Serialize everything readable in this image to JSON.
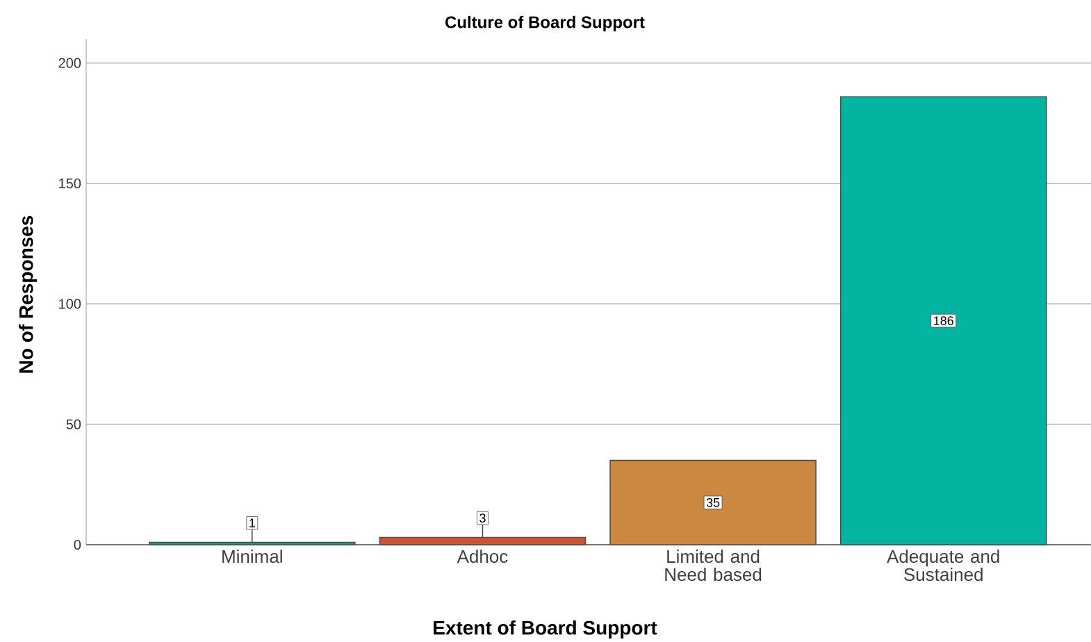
{
  "chart_data": {
    "type": "bar",
    "title": "Culture of Board Support",
    "xlabel": "Extent of Board Support",
    "ylabel": "No of Responses",
    "categories": [
      "Minimal",
      "Adhoc",
      "Limited and Need based",
      "Adequate and Sustained"
    ],
    "values": [
      1,
      3,
      35,
      186
    ],
    "colors": [
      "#1f9c8a",
      "#d0532f",
      "#cc8741",
      "#03b4a0"
    ],
    "ylim": [
      0,
      210
    ],
    "yticks": [
      0,
      50,
      100,
      150,
      200
    ],
    "grid": "y",
    "data_labels": true
  }
}
